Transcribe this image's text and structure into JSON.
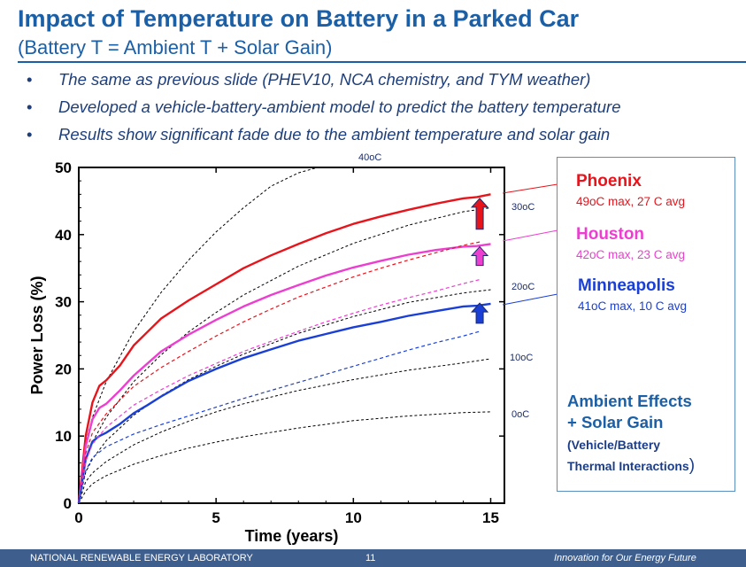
{
  "slide": {
    "title": "Impact of Temperature on Battery in a Parked Car",
    "subtitle": "(Battery T = Ambient T + Solar Gain)",
    "bullets": [
      "The same as previous slide (PHEV10, NCA chemistry, and TYM weather)",
      "Developed a vehicle-battery-ambient model to predict the battery temperature",
      "Results show significant fade due to the ambient temperature and solar gain"
    ],
    "bullet_marker": "•"
  },
  "legend": {
    "cities": [
      {
        "name": "Phoenix",
        "detail": "49oC max, 27 C avg",
        "color": "#e8141c"
      },
      {
        "name": "Houston",
        "detail": "42oC max, 23 C avg",
        "color": "#ec3fd0"
      },
      {
        "name": "Minneapolis",
        "detail": "41oC max, 10 C avg",
        "color": "#1a3fd6"
      }
    ],
    "note_line1": "Ambient  Effects",
    "note_line2": "+ Solar Gain",
    "note_line3": "(Vehicle/Battery",
    "note_line4": "Thermal Interactions",
    "note_paren": ")"
  },
  "footer": {
    "left": "NATIONAL RENEWABLE ENERGY LABORATORY",
    "page": "11",
    "right": "Innovation for Our Energy Future"
  },
  "chart_data": {
    "type": "line",
    "title": "",
    "xlabel": "Time (years)",
    "ylabel": "Power Loss (%)",
    "xlim": [
      0,
      15.5
    ],
    "ylim": [
      0,
      50
    ],
    "xticks": [
      0,
      5,
      10,
      15
    ],
    "yticks": [
      0,
      10,
      20,
      30,
      40,
      50
    ],
    "grid": false,
    "reference_curves": [
      {
        "label": "0oC",
        "x": [
          0,
          0.25,
          0.5,
          1,
          2,
          3,
          4,
          5,
          6,
          8,
          10,
          12,
          14,
          15
        ],
        "y": [
          0,
          1.8,
          2.9,
          4.1,
          5.8,
          7.1,
          8.2,
          9.1,
          9.9,
          11.2,
          12.3,
          13.0,
          13.5,
          13.6
        ]
      },
      {
        "label": "10oC",
        "x": [
          0,
          0.25,
          0.5,
          1,
          2,
          3,
          4,
          5,
          6,
          8,
          10,
          12,
          14,
          15
        ],
        "y": [
          0,
          3.2,
          4.5,
          6.2,
          8.7,
          10.6,
          12.2,
          13.6,
          14.8,
          16.8,
          18.4,
          19.8,
          20.9,
          21.5
        ]
      },
      {
        "label": "20oC",
        "x": [
          0,
          0.25,
          0.5,
          1,
          2,
          3,
          4,
          5,
          6,
          8,
          10,
          12,
          14,
          15
        ],
        "y": [
          0,
          4.6,
          6.6,
          9.3,
          13.1,
          16.0,
          18.4,
          20.4,
          22.2,
          25.3,
          27.8,
          29.9,
          31.3,
          31.8
        ]
      },
      {
        "label": "30oC",
        "x": [
          0,
          0.25,
          0.5,
          1,
          2,
          3,
          4,
          5,
          6,
          8,
          10,
          12,
          14,
          15
        ],
        "y": [
          0,
          6.4,
          9.1,
          12.8,
          18.1,
          22.1,
          25.5,
          28.4,
          31.0,
          35.3,
          38.7,
          41.4,
          43.4,
          44.0
        ]
      },
      {
        "label": "40oC",
        "x": [
          0,
          0.25,
          0.5,
          1,
          2,
          3,
          4,
          5,
          6,
          7,
          8,
          8.7
        ],
        "y": [
          0,
          9.0,
          12.8,
          18.1,
          25.6,
          31.4,
          36.2,
          40.4,
          44.0,
          47.2,
          49.2,
          50.0
        ]
      }
    ],
    "series": [
      {
        "name": "Phoenix",
        "color": "#e8141c",
        "x": [
          0,
          0.25,
          0.5,
          0.75,
          1,
          1.5,
          2,
          2.5,
          3,
          4,
          5,
          6,
          7,
          8,
          9,
          10,
          11,
          12,
          13,
          14,
          14.5,
          15
        ],
        "y": [
          0,
          10,
          15,
          17.5,
          18.3,
          20.5,
          23.5,
          25.5,
          27.5,
          30.2,
          32.6,
          35,
          36.9,
          38.6,
          40.2,
          41.6,
          42.7,
          43.7,
          44.6,
          45.4,
          45.6,
          46.0
        ]
      },
      {
        "name": "Houston",
        "color": "#ec3fd0",
        "x": [
          0,
          0.25,
          0.5,
          0.75,
          1,
          1.5,
          2,
          2.5,
          3,
          4,
          5,
          6,
          7,
          8,
          9,
          10,
          11,
          12,
          13,
          14,
          14.5,
          15
        ],
        "y": [
          0,
          8.5,
          12.5,
          14.2,
          14.8,
          16.8,
          19,
          20.8,
          22.6,
          25.1,
          27.3,
          29.3,
          31,
          32.5,
          33.9,
          35.1,
          36.1,
          37,
          37.7,
          38.2,
          38.3,
          38.6
        ]
      },
      {
        "name": "Minneapolis",
        "color": "#1a3fd6",
        "x": [
          0,
          0.25,
          0.5,
          0.75,
          1,
          1.5,
          2,
          2.5,
          3,
          4,
          5,
          6,
          7,
          8,
          9,
          10,
          11,
          12,
          13,
          14,
          14.5,
          15
        ],
        "y": [
          0,
          6.5,
          9.2,
          10,
          10.5,
          11.8,
          13.4,
          14.6,
          15.9,
          18.2,
          20,
          21.6,
          22.9,
          24.2,
          25.2,
          26.2,
          27,
          27.9,
          28.6,
          29.3,
          29.4,
          29.7
        ]
      },
      {
        "name": "Phoenix (dashed)",
        "color": "#e8141c",
        "dashed": true,
        "x": [
          0,
          0.25,
          0.5,
          1,
          2,
          3,
          4,
          5,
          6,
          7,
          8,
          9,
          10,
          11,
          12,
          13,
          14,
          14.6
        ],
        "y": [
          0,
          7.4,
          10.5,
          13.3,
          17.4,
          20.2,
          22.6,
          24.9,
          27,
          28.9,
          30.7,
          32.2,
          33.7,
          35,
          36.2,
          37.3,
          38.4,
          38.9
        ]
      },
      {
        "name": "Houston (dashed)",
        "color": "#ec3fd0",
        "dashed": true,
        "x": [
          0,
          0.25,
          0.5,
          1,
          2,
          3,
          4,
          5,
          6,
          7,
          8,
          9,
          10,
          11,
          12,
          13,
          14,
          14.6
        ],
        "y": [
          0,
          6.2,
          8.8,
          11.3,
          14.6,
          16.9,
          19,
          20.8,
          22.6,
          24.1,
          25.6,
          27,
          28.3,
          29.5,
          30.6,
          31.6,
          32.7,
          33.3
        ]
      },
      {
        "name": "Minneapolis (dashed)",
        "color": "#1a3fd6",
        "dashed": true,
        "x": [
          0,
          0.25,
          0.5,
          1,
          2,
          3,
          4,
          5,
          6,
          7,
          8,
          9,
          10,
          11,
          12,
          13,
          14,
          14.6
        ],
        "y": [
          0,
          4.8,
          6.8,
          8.4,
          10.3,
          11.7,
          13,
          14.3,
          15.6,
          16.8,
          18,
          19.2,
          20.4,
          21.6,
          22.8,
          23.9,
          24.9,
          25.6
        ]
      }
    ],
    "arrows": [
      {
        "series": "Phoenix",
        "x": 14.6,
        "y_from": 40.8,
        "y_to": 45.4,
        "fill": "#e8141c"
      },
      {
        "series": "Houston",
        "x": 14.6,
        "y_from": 35.4,
        "y_to": 38.2,
        "fill": "#ec3fd0"
      },
      {
        "series": "Minneapolis",
        "x": 14.6,
        "y_from": 26.8,
        "y_to": 29.8,
        "fill": "#1a3fd6"
      }
    ]
  }
}
